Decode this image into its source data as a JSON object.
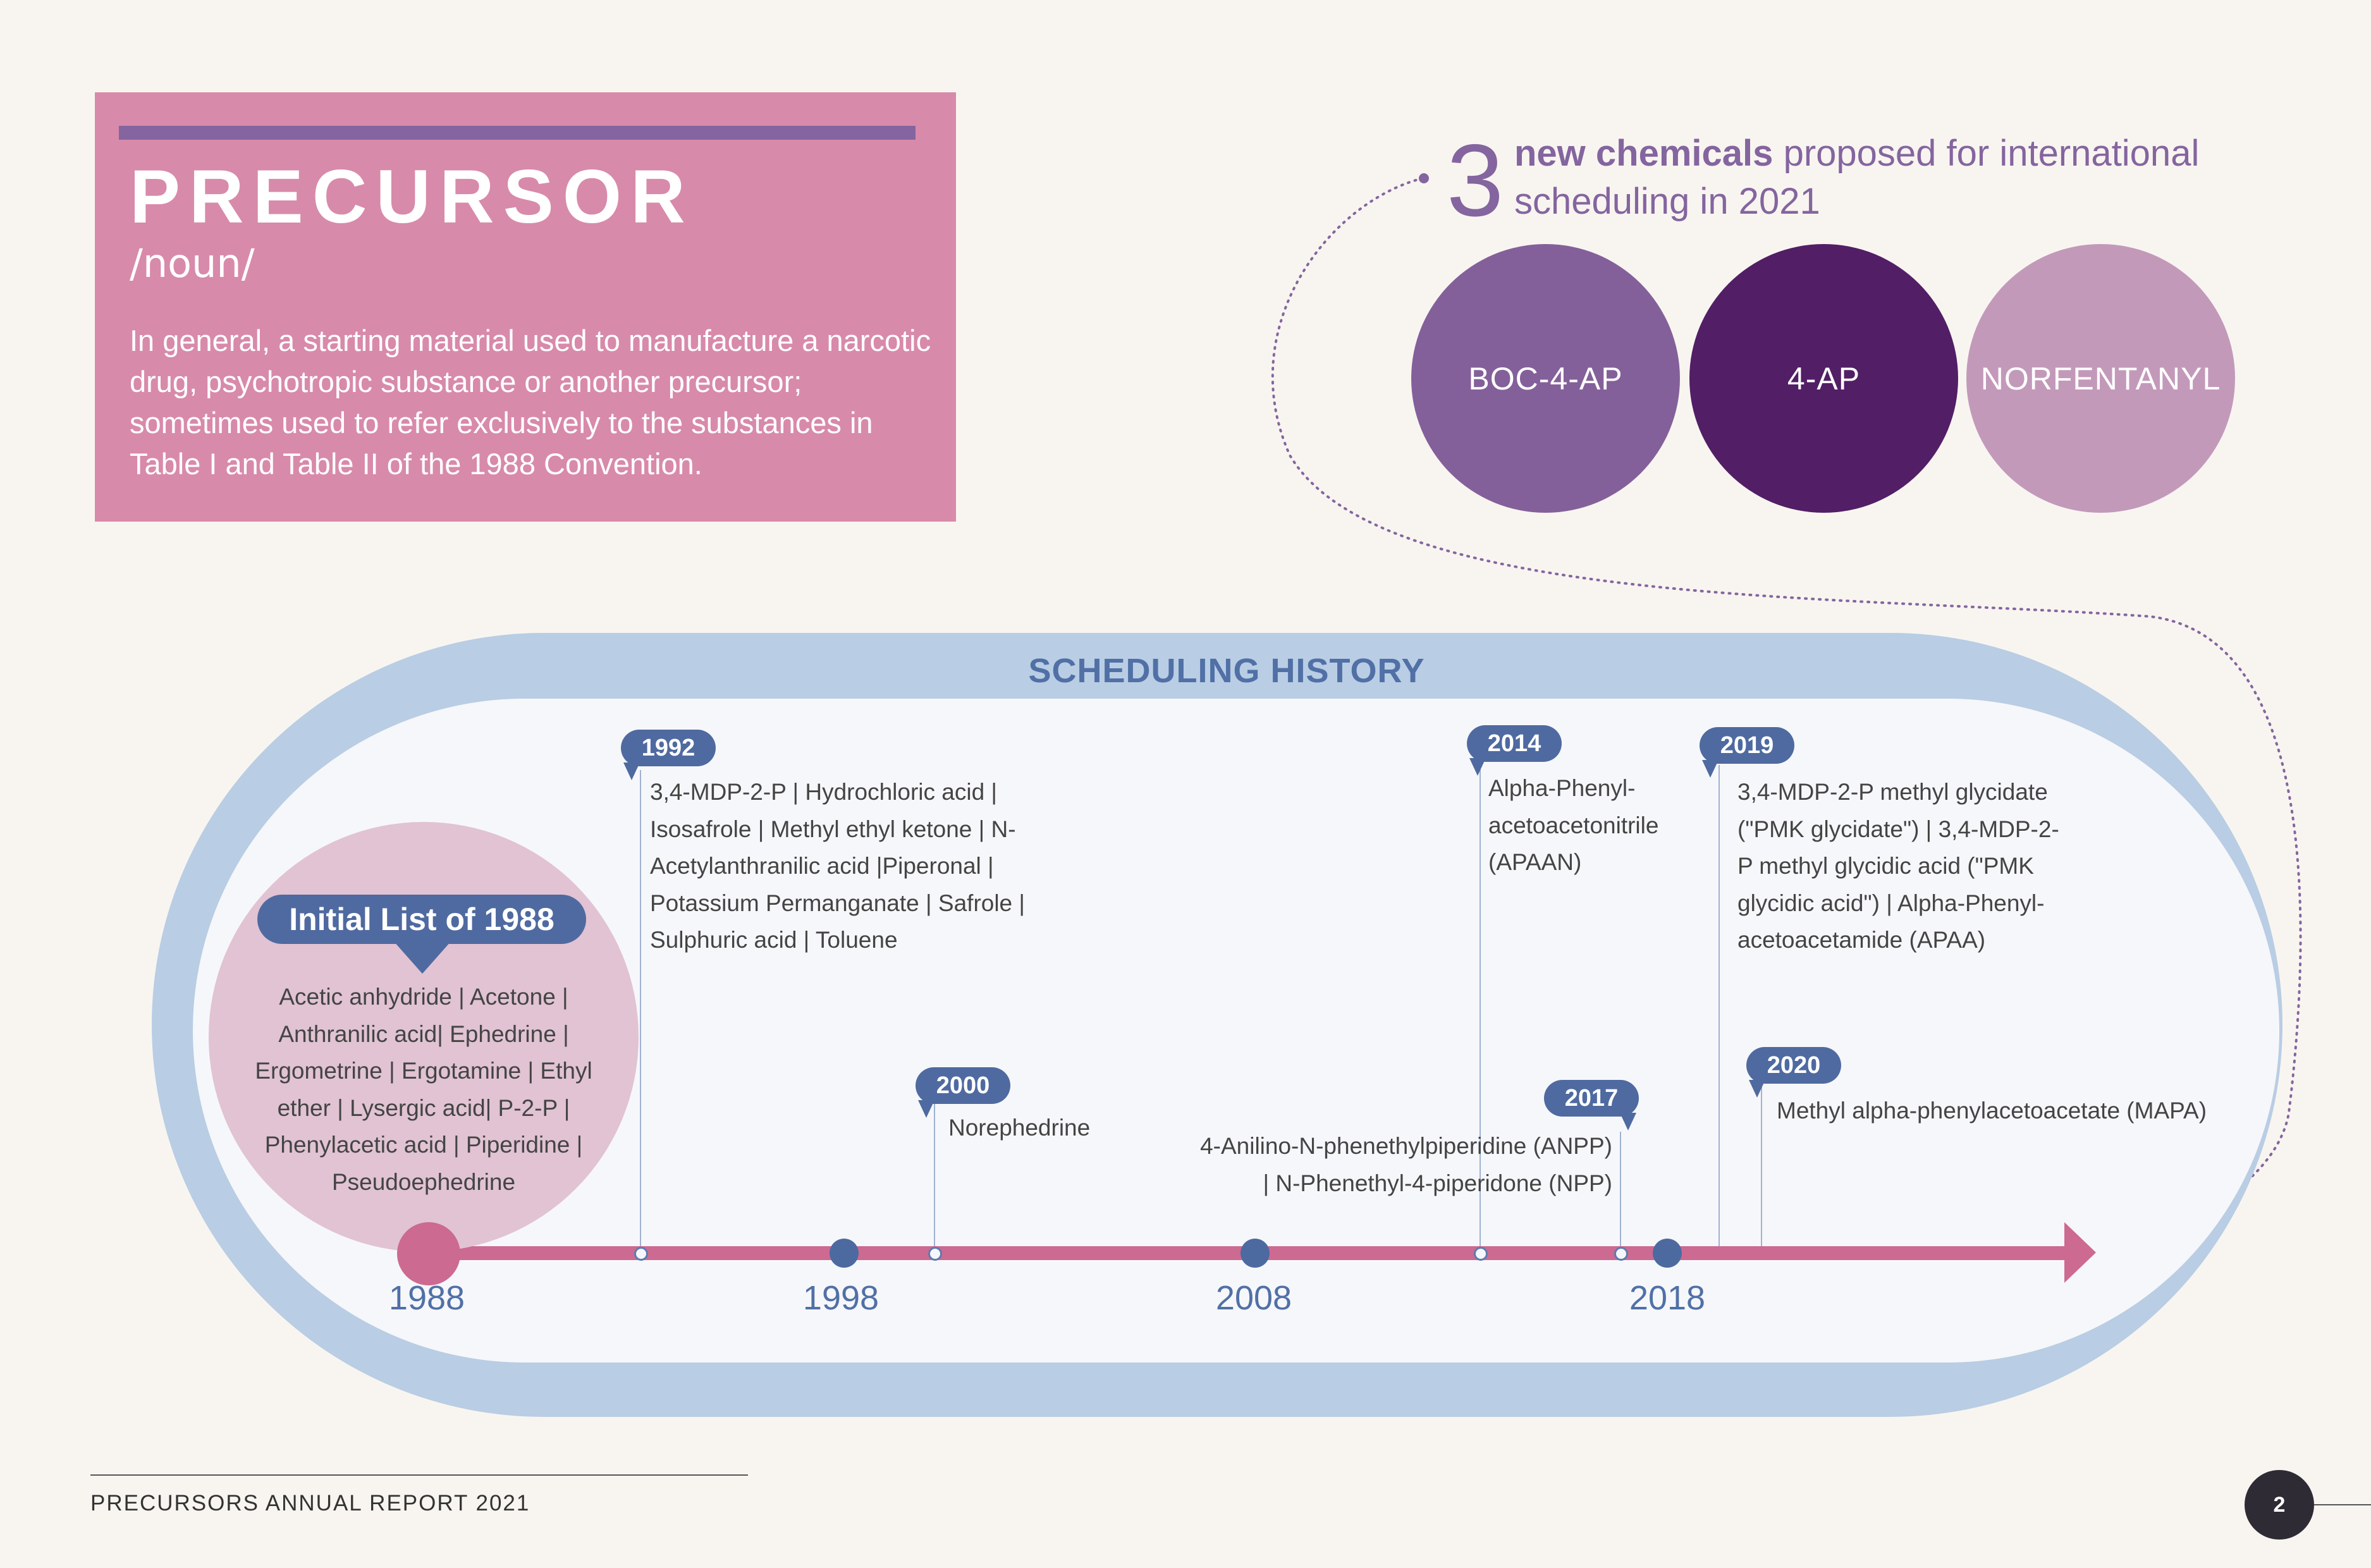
{
  "definition": {
    "word": "PRECURSOR",
    "part_of_speech": "/noun/",
    "text": "In general, a starting material used to manufacture a narcotic drug, psychotropic substance or another precursor; sometimes used to refer exclusively to the substances in Table I and Table II of the 1988 Convention."
  },
  "proposed": {
    "count": "3",
    "bold": "new chemicals",
    "rest": "proposed for international scheduling in 2021",
    "chemicals": [
      {
        "name": "BOC-4-AP",
        "color": "#84609a"
      },
      {
        "name": "4-AP",
        "color": "#521e66"
      },
      {
        "name": "NORFENTANYL",
        "color": "#c399ba"
      }
    ]
  },
  "history": {
    "title": "SCHEDULING HISTORY",
    "axis_years": [
      "1988",
      "1998",
      "2008",
      "2018"
    ],
    "initial_list": {
      "title": "Initial List of 1988",
      "text": "Acetic anhydride | Acetone | Anthranilic acid| Ephedrine | Ergometrine | Ergotamine | Ethyl ether | Lysergic acid| P-2-P | Phenylacetic acid | Piperidine | Pseudoephedrine"
    },
    "events": [
      {
        "year": "1992",
        "text": "3,4-MDP-2-P | Hydrochloric acid | Isosafrole | Methyl ethyl ketone | N-Acetylanthranilic acid |Piperonal | Potassium Permanganate | Safrole | Sulphuric acid | Toluene"
      },
      {
        "year": "2000",
        "text": "Norephedrine"
      },
      {
        "year": "2014",
        "text": "Alpha-Phenyl- acetoacetonitrile (APAAN)"
      },
      {
        "year": "2017",
        "text": "4-Anilino-N-phenethylpiperidine (ANPP) | N-Phenethyl-4-piperidone (NPP)"
      },
      {
        "year": "2019",
        "text": "3,4-MDP-2-P methyl glycidate (\"PMK glycidate\") | 3,4-MDP-2-P methyl glycidic acid (\"PMK glycidic acid\") | Alpha-Phenyl- acetoacetamide (APAA)"
      },
      {
        "year": "2020",
        "text": "Methyl alpha-phenylacetoacetate (MAPA)"
      }
    ]
  },
  "footer": {
    "report": "PRECURSORS ANNUAL REPORT 2021",
    "page": "2"
  }
}
